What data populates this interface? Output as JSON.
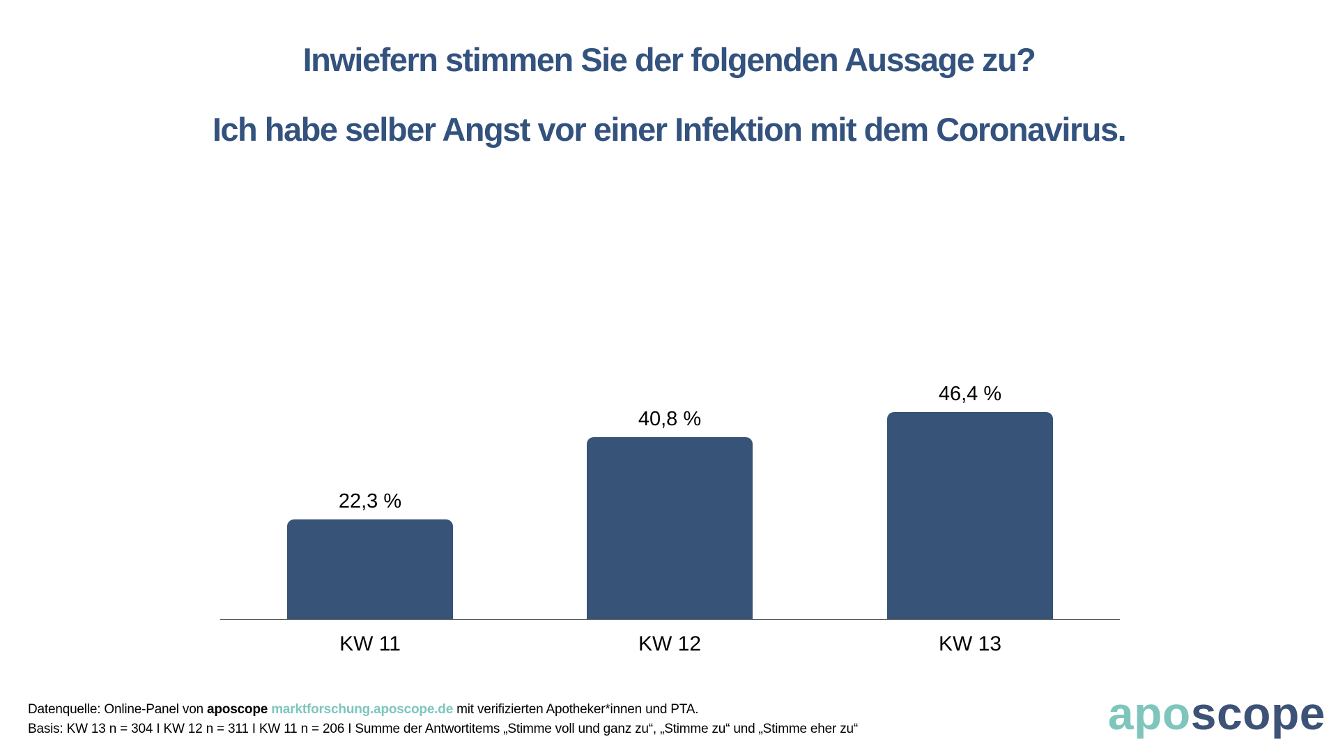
{
  "chart_data": {
    "type": "bar",
    "title": "Inwiefern stimmen Sie der folgenden Aussage zu?",
    "subtitle": "Ich habe selber Angst vor einer Infektion mit dem Coronavirus.",
    "categories": [
      "KW 11",
      "KW 12",
      "KW 13"
    ],
    "values": [
      22.3,
      40.8,
      46.4
    ],
    "value_labels": [
      "22,3 %",
      "40,8 %",
      "46,4 %"
    ],
    "xlabel": "",
    "ylabel": "",
    "ylim": [
      0,
      50
    ],
    "grid": false,
    "legend": "none",
    "bar_color": "#375378"
  },
  "colors": {
    "title": "#33527E",
    "bar": "#375378",
    "axis": "#595959",
    "teal": "#7EC6BC",
    "logo_blue": "#3D5277",
    "label_text": "#000000"
  },
  "footer": {
    "line1_prefix": "Datenquelle: Online-Panel von ",
    "line1_brand": "aposcope",
    "line1_link": "marktforschung.aposcope.de",
    "line1_suffix": " mit verifizierten Apotheker*innen und PTA.",
    "line2": "Basis: KW 13 n = 304 I KW 12 n = 311 I KW 11 n = 206 I Summe der Antwortitems „Stimme voll und ganz zu“, „Stimme zu“ und „Stimme eher zu“"
  },
  "logo": {
    "part1": "apo",
    "part2": "scope"
  }
}
